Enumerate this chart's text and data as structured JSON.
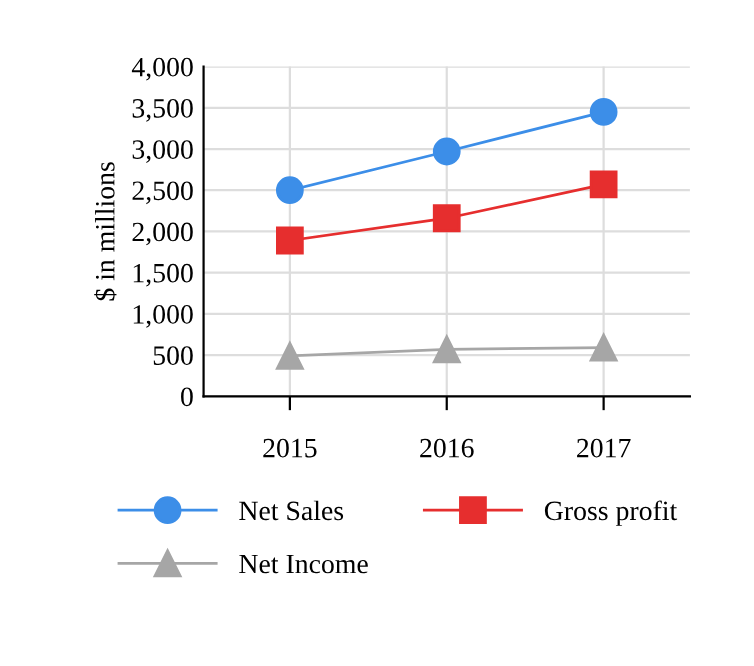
{
  "chart_data": {
    "type": "line",
    "ylabel": "$ in millions",
    "categories": [
      "2015",
      "2016",
      "2017"
    ],
    "series": [
      {
        "name": "Net Sales",
        "color": "#3c8ee8",
        "marker": "circle",
        "values": [
          2500,
          2970,
          3450
        ]
      },
      {
        "name": "Gross profit",
        "color": "#e62e2e",
        "marker": "square",
        "values": [
          1890,
          2160,
          2570
        ]
      },
      {
        "name": "Net Income",
        "color": "#a6a6a6",
        "marker": "triangle",
        "values": [
          490,
          570,
          590
        ]
      }
    ],
    "ylim": [
      0,
      4000
    ],
    "yticks": [
      {
        "value": 0,
        "label": "0"
      },
      {
        "value": 500,
        "label": "500"
      },
      {
        "value": 1000,
        "label": "1,000"
      },
      {
        "value": 1500,
        "label": "1,500"
      },
      {
        "value": 2000,
        "label": "2,000"
      },
      {
        "value": 2500,
        "label": "2,500"
      },
      {
        "value": 3000,
        "label": "3,000"
      },
      {
        "value": 3500,
        "label": "3,500"
      },
      {
        "value": 4000,
        "label": "4,000"
      }
    ],
    "grid": true,
    "legend": "bottom",
    "line_style": "solid"
  }
}
